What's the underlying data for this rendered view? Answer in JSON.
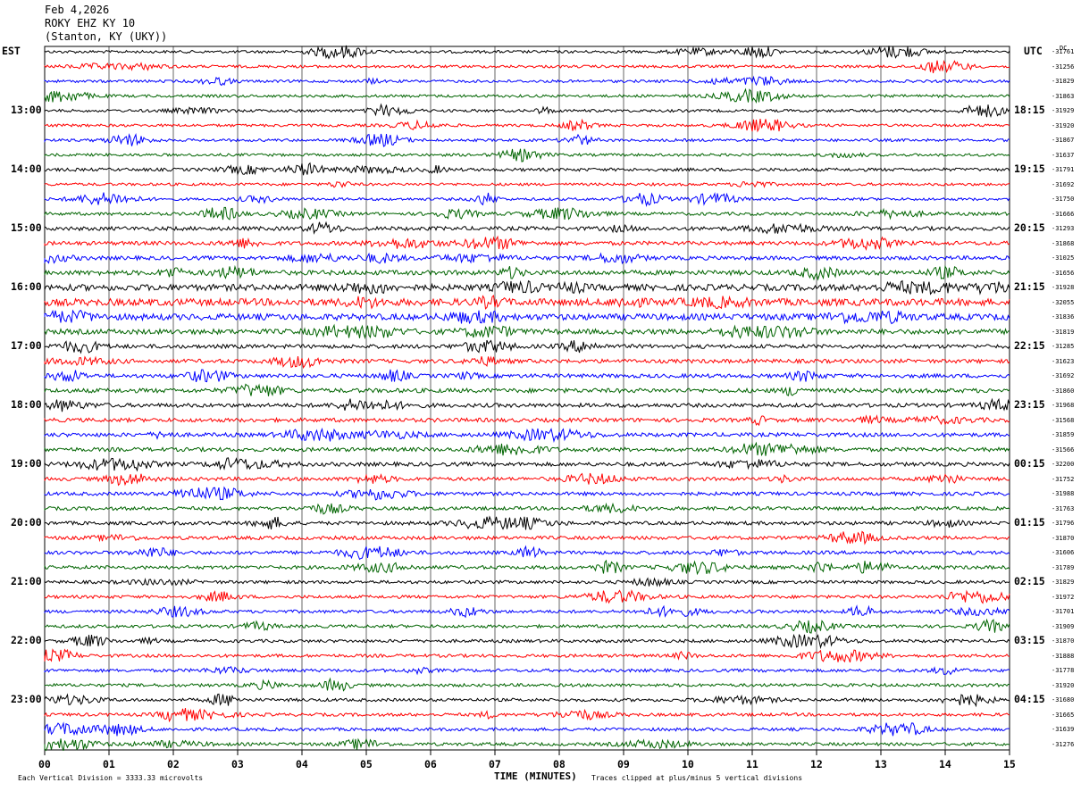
{
  "header": {
    "date": "Feb 4,2026",
    "station": "ROKY EHZ KY 10",
    "location": "(Stanton, KY (UKY))"
  },
  "left_axis_title": "EST",
  "right_axis_title": "UTC",
  "dc_label": "DC",
  "footer": {
    "scale_note": "Each Vertical Division = 3333.33 microvolts",
    "clip_note": "Traces clipped at plus/minus 5 vertical divisions",
    "x_title": "TIME (MINUTES)"
  },
  "colors": {
    "trace_cycle": [
      "#000000",
      "#ff0000",
      "#0000ff",
      "#006400"
    ],
    "grid": "#000000"
  },
  "chart_data": {
    "type": "line",
    "description_type": "helicorder",
    "x_ticks": [
      "00",
      "01",
      "02",
      "03",
      "04",
      "05",
      "06",
      "07",
      "08",
      "09",
      "10",
      "11",
      "12",
      "13",
      "14",
      "15"
    ],
    "xlim": [
      0,
      15
    ],
    "est_hour_labels": [
      "13:00",
      "14:00",
      "15:00",
      "16:00",
      "17:00",
      "18:00",
      "19:00",
      "20:00",
      "21:00",
      "22:00",
      "23:00"
    ],
    "utc_labels": [
      "18:15",
      "19:15",
      "20:15",
      "21:15",
      "22:15",
      "23:15",
      "00:15",
      "01:15",
      "02:15",
      "03:15",
      "04:15"
    ],
    "traces_per_hour": 4,
    "trace_count": 48,
    "dc_offsets": [
      "-31761",
      "-31256",
      "-31829",
      "-31863",
      "-31929",
      "-31920",
      "-31867",
      "-31637",
      "-31791",
      "-31692",
      "-31750",
      "-31666",
      "-31293",
      "-31868",
      "-31025",
      "-31656",
      "-31928",
      "-32055",
      "-31836",
      "-31819",
      "-31285",
      "-31623",
      "-31692",
      "-31860",
      "-31968",
      "-31568",
      "-31859",
      "-31566",
      "-32200",
      "-31752",
      "-31988",
      "-31763",
      "-31796",
      "-31870",
      "-31606",
      "-31789",
      "-31829",
      "-31972",
      "-31701",
      "-31909",
      "-31870",
      "-31888",
      "-31778",
      "-31920",
      "-31680",
      "-31665",
      "-31639",
      "-31276"
    ],
    "trace_amplitude": [
      0.7,
      0.7,
      0.7,
      0.7,
      0.7,
      0.7,
      0.7,
      0.7,
      0.8,
      0.7,
      0.7,
      0.8,
      1.0,
      1.0,
      1.0,
      1.2,
      1.6,
      1.8,
      1.6,
      1.3,
      1.0,
      1.0,
      1.0,
      1.1,
      1.0,
      1.0,
      1.0,
      1.0,
      1.0,
      0.9,
      0.9,
      0.9,
      0.9,
      0.9,
      0.9,
      0.9,
      0.8,
      0.8,
      0.8,
      0.8,
      0.8,
      0.8,
      0.8,
      0.8,
      0.8,
      0.8,
      0.8,
      0.8
    ]
  }
}
